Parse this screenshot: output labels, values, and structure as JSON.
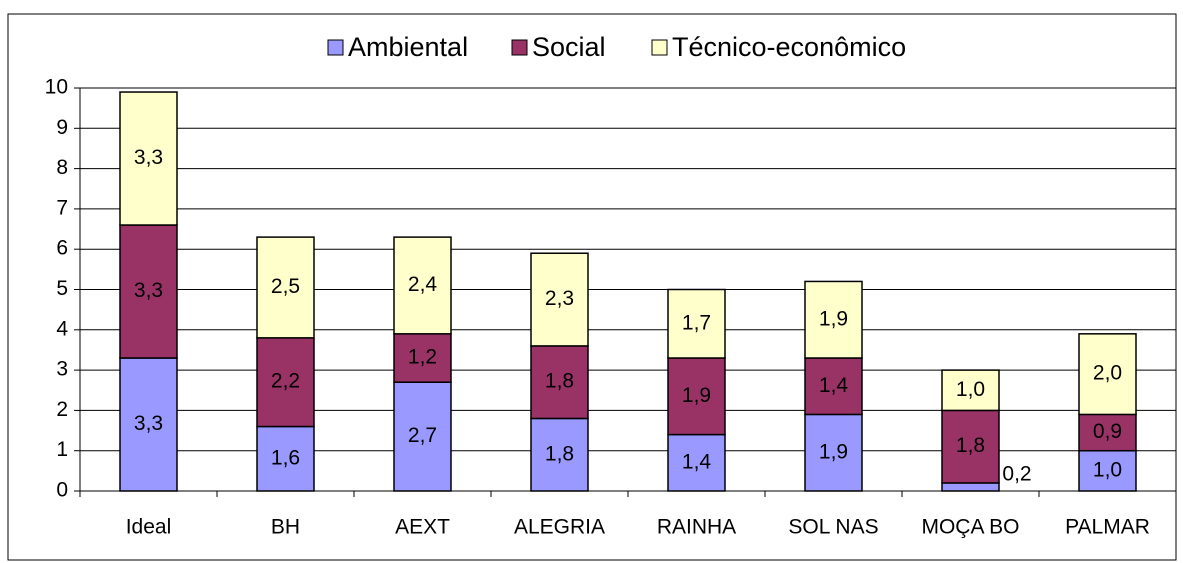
{
  "chart_data": {
    "type": "stacked_bar",
    "categories": [
      "Ideal",
      "BH",
      "AEXT",
      "ALEGRIA",
      "RAINHA",
      "SOL NAS",
      "MOÇA BO",
      "PALMAR"
    ],
    "series": [
      {
        "name": "Ambiental",
        "color": "#9999ff",
        "values": [
          3.3,
          1.6,
          2.7,
          1.8,
          1.4,
          1.9,
          0.2,
          1.0
        ],
        "value_labels": [
          "3,3",
          "1,6",
          "2,7",
          "1,8",
          "1,4",
          "1,9",
          "0,2",
          "1,0"
        ]
      },
      {
        "name": "Social",
        "color": "#993366",
        "values": [
          3.3,
          2.2,
          1.2,
          1.8,
          1.9,
          1.4,
          1.8,
          0.9
        ],
        "value_labels": [
          "3,3",
          "2,2",
          "1,2",
          "1,8",
          "1,9",
          "1,4",
          "1,8",
          "0,9"
        ]
      },
      {
        "name": "Técnico-econômico",
        "color": "#ffffcc",
        "values": [
          3.3,
          2.5,
          2.4,
          2.3,
          1.7,
          1.9,
          1.0,
          2.0
        ],
        "value_labels": [
          "3,3",
          "2,5",
          "2,4",
          "2,3",
          "1,7",
          "1,9",
          "1,0",
          "2,0"
        ]
      }
    ],
    "ylim": [
      0,
      10
    ],
    "yticks": [
      0,
      1,
      2,
      3,
      4,
      5,
      6,
      7,
      8,
      9,
      10
    ],
    "grid": true,
    "legend": "top"
  }
}
